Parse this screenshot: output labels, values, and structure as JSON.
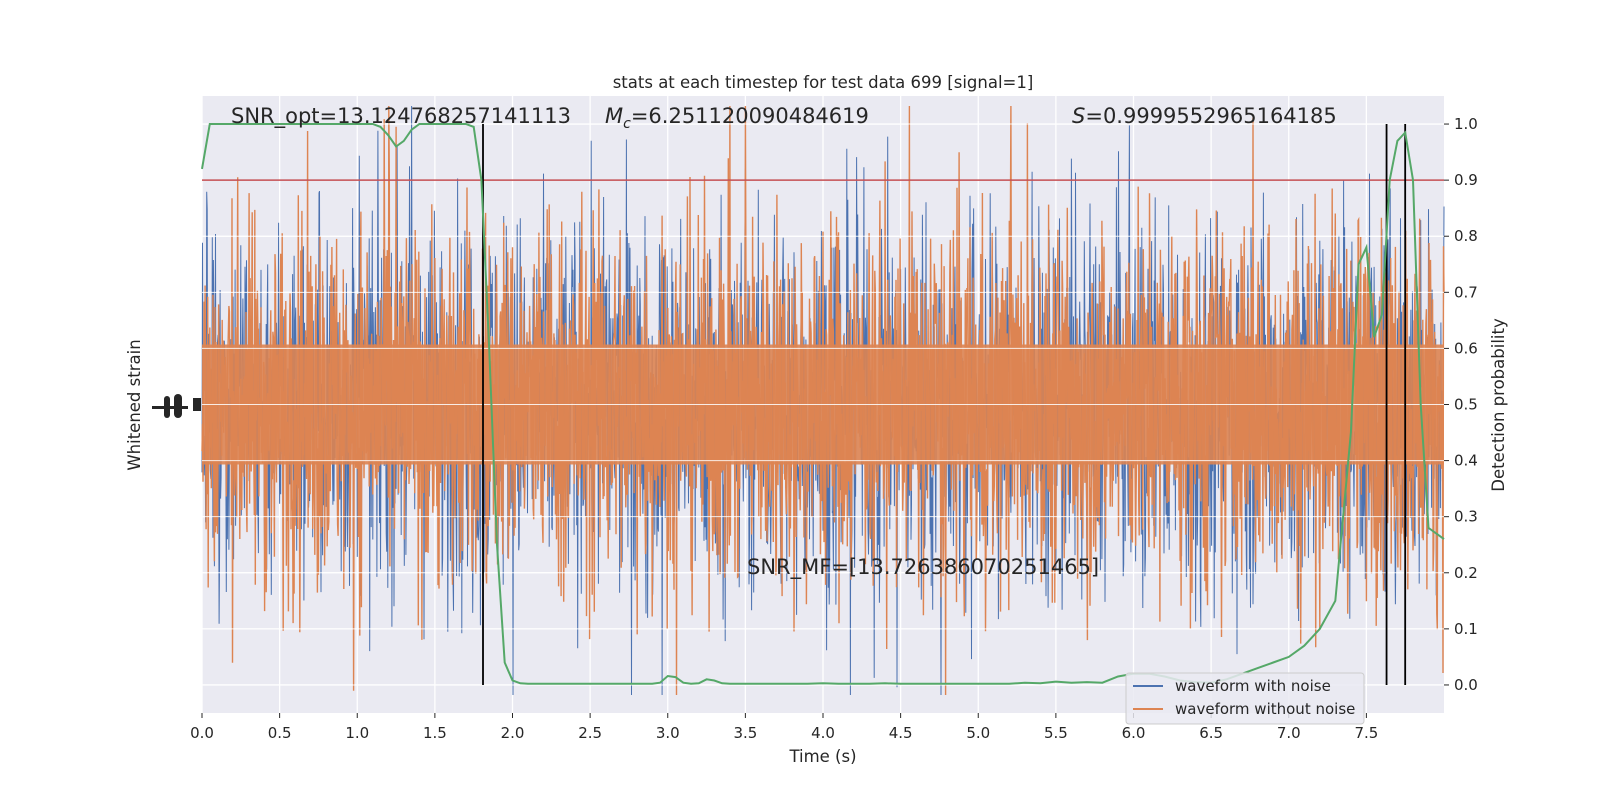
{
  "chart_data": {
    "type": "line",
    "title": "stats at each timestep for test data 699 [signal=1]",
    "xlabel": "Time (s)",
    "ylabel_left": "Whitened strain",
    "ylabel_right": "Detection probability",
    "xlim": [
      0.0,
      8.0
    ],
    "ylim_right": [
      -0.05,
      1.05
    ],
    "x_ticks": [
      "0.0",
      "0.5",
      "1.0",
      "1.5",
      "2.0",
      "2.5",
      "3.0",
      "3.5",
      "4.0",
      "4.5",
      "5.0",
      "5.5",
      "6.0",
      "6.5",
      "7.0",
      "7.5"
    ],
    "y_ticks_right": [
      "0.0",
      "0.1",
      "0.2",
      "0.3",
      "0.4",
      "0.5",
      "0.6",
      "0.7",
      "0.8",
      "0.9",
      "1.0"
    ],
    "grid": true,
    "legend_position": "bottom-right",
    "annotations": {
      "snr_opt": "SNR_opt=13.124768257141113",
      "mc_symbol": "M",
      "mc_sub": "c",
      "mc_value": "=6.251120090484619",
      "s_symbol": "S",
      "s_value": "=0.9999552965164185",
      "snr_mf": "SNR_MF=[13.726386070251465]"
    },
    "threshold": 0.9,
    "vertical_lines_x": [
      1.81,
      7.63,
      7.75
    ],
    "series": [
      {
        "name": "waveform with noise",
        "color": "#4c72b0",
        "style": "dense noise trace, hidden behind orange trace"
      },
      {
        "name": "waveform without noise",
        "color": "#dd8452",
        "style": "dense noise trace around zero strain"
      },
      {
        "color": "#55a868",
        "x": [
          0.0,
          0.05,
          0.1,
          0.2,
          0.3,
          0.4,
          0.5,
          0.6,
          0.7,
          0.8,
          0.9,
          1.0,
          1.1,
          1.15,
          1.2,
          1.25,
          1.3,
          1.35,
          1.4,
          1.5,
          1.6,
          1.7,
          1.75,
          1.8,
          1.85,
          1.9,
          1.95,
          2.0,
          2.05,
          2.1,
          2.2,
          2.3,
          2.4,
          2.5,
          2.6,
          2.7,
          2.8,
          2.9,
          2.95,
          3.0,
          3.05,
          3.1,
          3.15,
          3.2,
          3.25,
          3.3,
          3.35,
          3.4,
          3.5,
          3.6,
          3.7,
          3.8,
          3.9,
          4.0,
          4.1,
          4.2,
          4.3,
          4.4,
          4.5,
          4.6,
          4.7,
          4.8,
          4.9,
          5.0,
          5.1,
          5.2,
          5.3,
          5.4,
          5.5,
          5.6,
          5.7,
          5.8,
          5.9,
          6.0,
          6.1,
          6.2,
          6.3,
          6.4,
          6.5,
          6.6,
          6.7,
          6.8,
          6.9,
          7.0,
          7.1,
          7.2,
          7.3,
          7.4,
          7.45,
          7.5,
          7.55,
          7.6,
          7.65,
          7.7,
          7.75,
          7.8,
          7.85,
          7.9,
          8.0
        ],
        "y": [
          0.92,
          1.0,
          1.0,
          1.0,
          1.0,
          1.0,
          1.0,
          1.0,
          1.0,
          1.0,
          1.0,
          1.0,
          1.0,
          0.995,
          0.98,
          0.96,
          0.97,
          0.99,
          1.0,
          1.0,
          1.0,
          1.0,
          0.995,
          0.9,
          0.6,
          0.25,
          0.04,
          0.008,
          0.003,
          0.002,
          0.002,
          0.002,
          0.002,
          0.002,
          0.002,
          0.002,
          0.002,
          0.002,
          0.004,
          0.016,
          0.014,
          0.004,
          0.002,
          0.003,
          0.01,
          0.008,
          0.003,
          0.002,
          0.002,
          0.002,
          0.002,
          0.002,
          0.002,
          0.003,
          0.002,
          0.002,
          0.002,
          0.003,
          0.002,
          0.002,
          0.002,
          0.002,
          0.002,
          0.002,
          0.002,
          0.002,
          0.004,
          0.003,
          0.006,
          0.004,
          0.005,
          0.004,
          0.015,
          0.02,
          0.02,
          0.015,
          0.008,
          0.005,
          0.004,
          0.01,
          0.02,
          0.03,
          0.04,
          0.05,
          0.07,
          0.1,
          0.15,
          0.45,
          0.75,
          0.78,
          0.62,
          0.66,
          0.9,
          0.97,
          0.985,
          0.9,
          0.5,
          0.28,
          0.26
        ]
      }
    ],
    "colors": {
      "background": "#eaeaf2",
      "grid": "#ffffff",
      "threshold": "#c44e52",
      "vline": "#000000"
    }
  }
}
